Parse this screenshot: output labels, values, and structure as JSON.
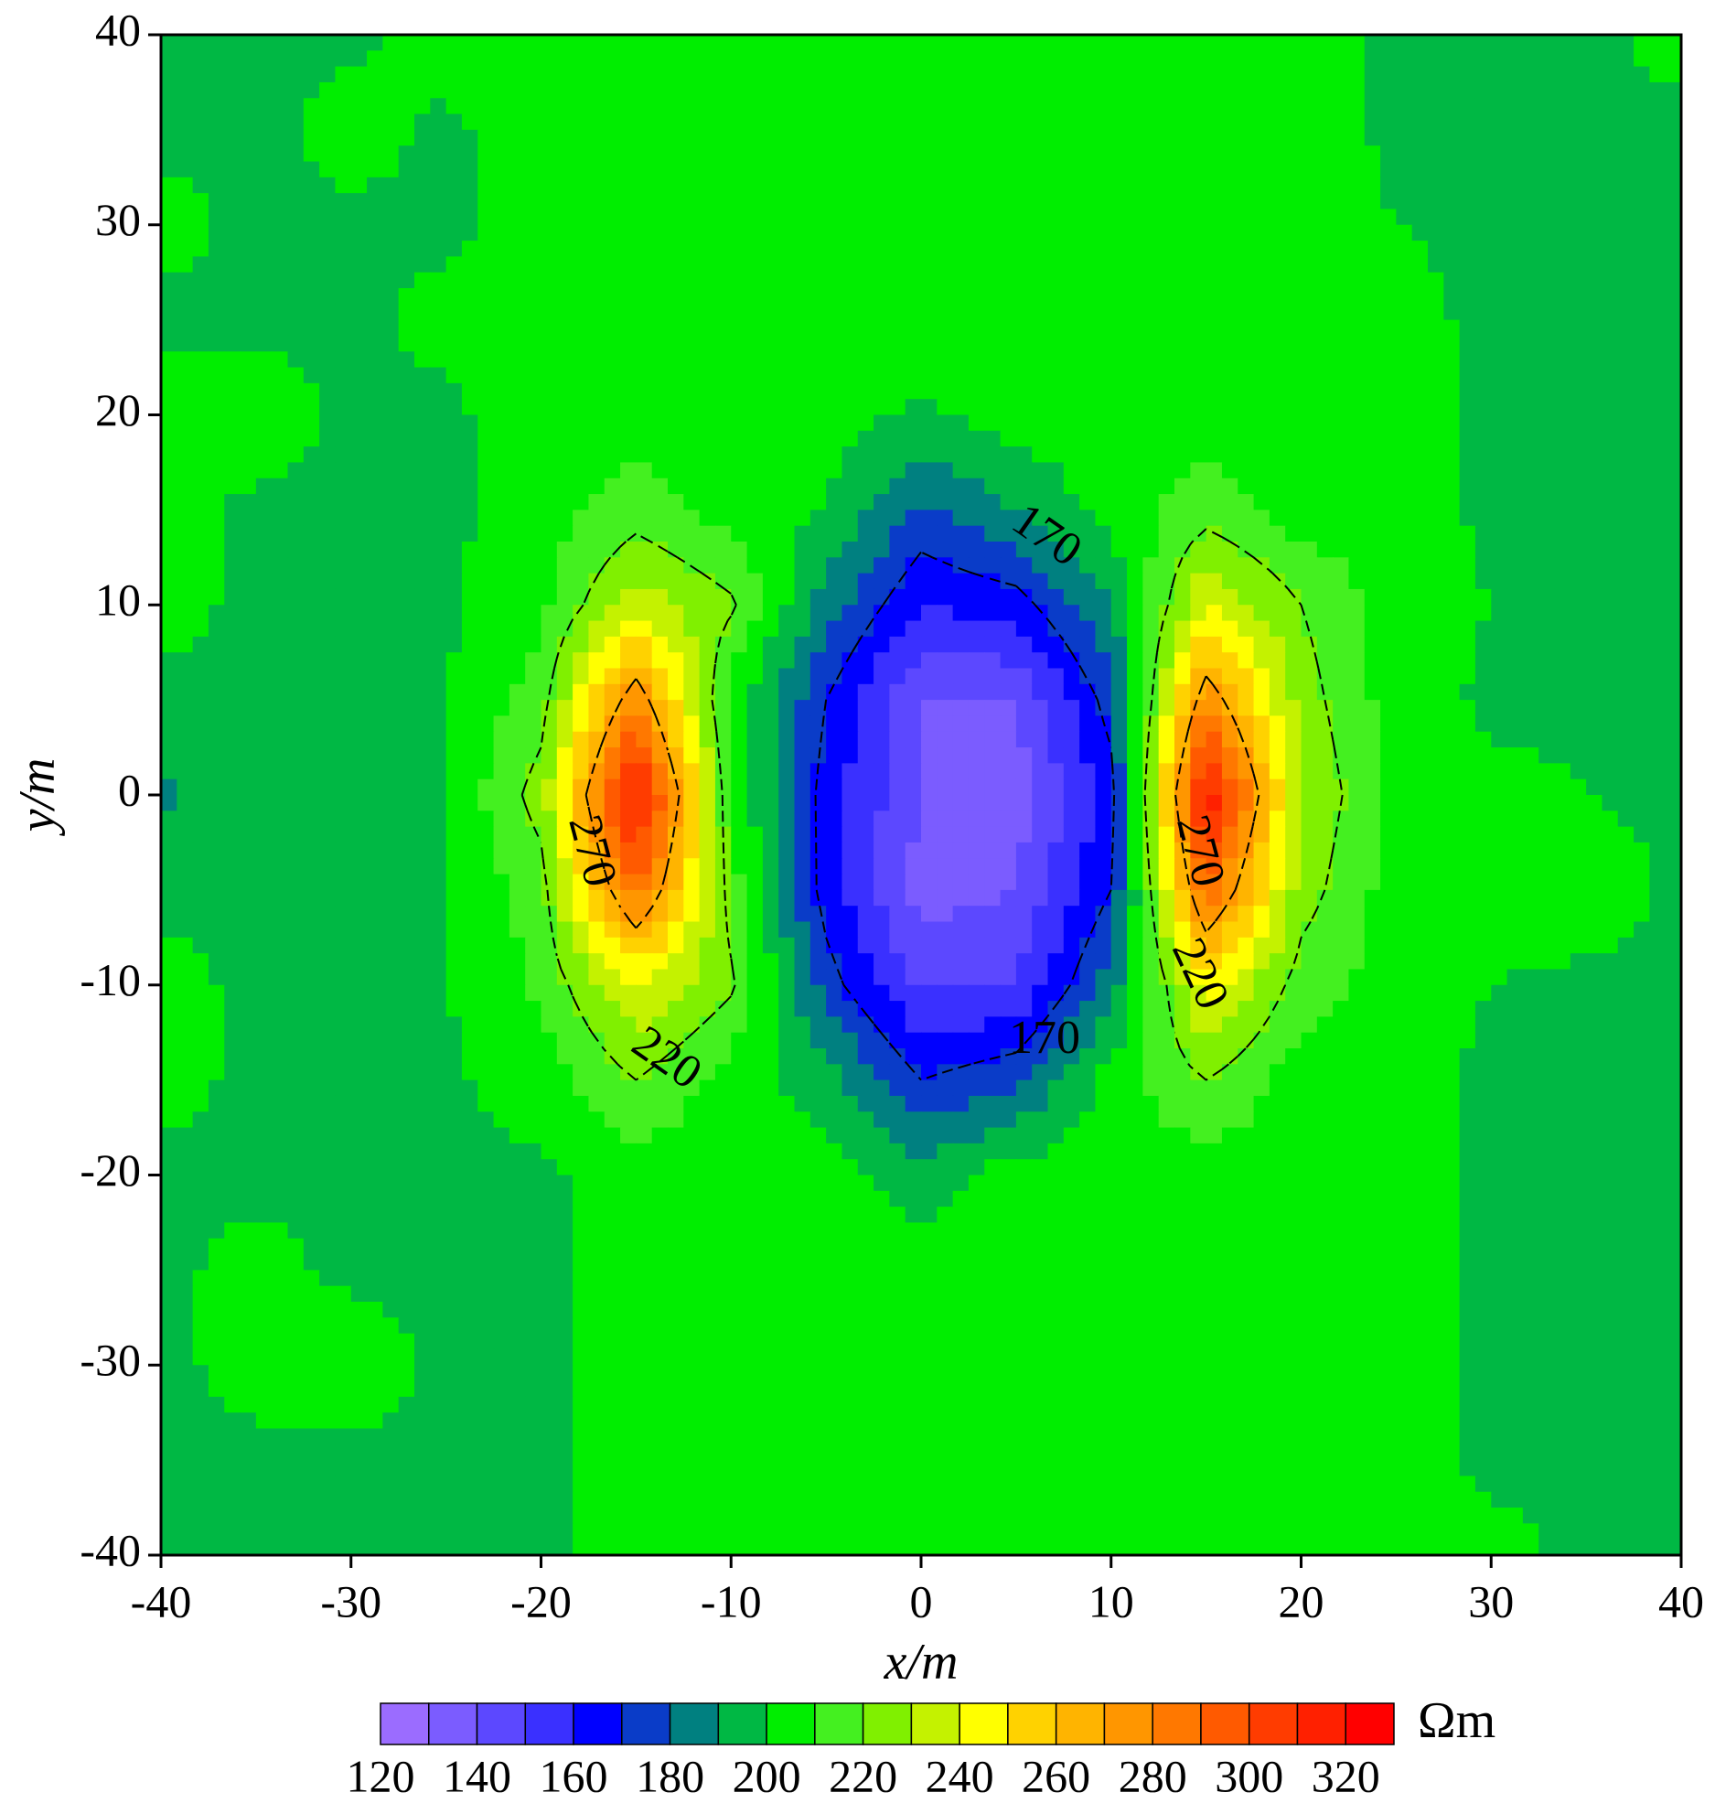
{
  "chart_data": {
    "type": "contour",
    "x_label": "x/m",
    "y_label": "y/m",
    "x": [
      -40,
      -35,
      -30,
      -25,
      -20,
      -15,
      -10,
      -5,
      0,
      5,
      10,
      15,
      20,
      25,
      30,
      35,
      40
    ],
    "y": [
      40,
      35,
      30,
      25,
      20,
      15,
      10,
      5,
      0,
      -5,
      -10,
      -15,
      -20,
      -25,
      -30,
      -35,
      -40
    ],
    "z": [
      [
        198,
        198,
        198,
        205,
        205,
        205,
        205,
        205,
        205,
        205,
        205,
        205,
        205,
        198,
        198,
        198,
        203
      ],
      [
        198,
        197,
        204,
        198,
        205,
        205,
        205,
        205,
        205,
        205,
        205,
        205,
        205,
        198,
        198,
        198,
        198
      ],
      [
        203,
        198,
        198,
        198,
        204,
        205,
        205,
        205,
        205,
        205,
        205,
        205,
        205,
        200,
        198,
        198,
        198
      ],
      [
        198,
        198,
        198,
        203,
        205,
        205,
        205,
        205,
        205,
        205,
        205,
        205,
        205,
        203,
        198,
        198,
        198
      ],
      [
        203,
        205,
        198,
        198,
        205,
        205,
        205,
        205,
        198,
        205,
        205,
        205,
        205,
        205,
        198,
        198,
        198
      ],
      [
        203,
        198,
        198,
        198,
        205,
        215,
        205,
        200,
        178,
        190,
        205,
        215,
        205,
        205,
        198,
        198,
        198
      ],
      [
        203,
        198,
        198,
        198,
        208,
        235,
        222,
        185,
        160,
        165,
        190,
        240,
        220,
        205,
        200,
        198,
        198
      ],
      [
        198,
        198,
        198,
        200,
        215,
        280,
        205,
        170,
        140,
        140,
        175,
        280,
        225,
        205,
        198,
        198,
        198
      ],
      [
        188,
        198,
        198,
        200,
        225,
        320,
        210,
        165,
        140,
        135,
        165,
        320,
        230,
        207,
        203,
        200,
        198
      ],
      [
        198,
        198,
        198,
        200,
        215,
        290,
        215,
        165,
        135,
        140,
        170,
        290,
        225,
        205,
        203,
        205,
        198
      ],
      [
        203,
        198,
        198,
        200,
        212,
        240,
        222,
        175,
        148,
        150,
        185,
        245,
        215,
        205,
        200,
        198,
        198
      ],
      [
        203,
        198,
        198,
        198,
        205,
        220,
        205,
        195,
        170,
        178,
        205,
        220,
        205,
        203,
        198,
        198,
        198
      ],
      [
        198,
        198,
        198,
        198,
        198,
        205,
        205,
        205,
        195,
        205,
        205,
        205,
        205,
        205,
        198,
        198,
        198
      ],
      [
        198,
        203,
        198,
        198,
        198,
        205,
        205,
        205,
        205,
        205,
        205,
        205,
        205,
        205,
        198,
        198,
        198
      ],
      [
        198,
        203,
        205,
        198,
        198,
        205,
        205,
        205,
        205,
        205,
        205,
        205,
        205,
        205,
        198,
        198,
        198
      ],
      [
        198,
        198,
        198,
        198,
        198,
        205,
        205,
        205,
        205,
        205,
        205,
        205,
        205,
        203,
        198,
        198,
        198
      ],
      [
        198,
        198,
        198,
        198,
        198,
        205,
        205,
        205,
        205,
        205,
        205,
        205,
        205,
        205,
        203,
        198,
        198
      ]
    ],
    "xlim": [
      -40,
      40
    ],
    "ylim": [
      -40,
      40
    ],
    "xticks": [
      -40,
      -30,
      -20,
      -10,
      0,
      10,
      20,
      30,
      40
    ],
    "yticks": [
      -40,
      -30,
      -20,
      -10,
      0,
      10,
      20,
      30,
      40
    ],
    "colorbar": {
      "unit": "Ωm",
      "levels": [
        120,
        130,
        140,
        150,
        160,
        170,
        180,
        190,
        200,
        210,
        220,
        230,
        240,
        250,
        260,
        270,
        280,
        290,
        300,
        310,
        320,
        330
      ],
      "colors": [
        "#9b6cff",
        "#7b5cff",
        "#5c48ff",
        "#3a30ff",
        "#0000ff",
        "#0a3cc8",
        "#008080",
        "#00b844",
        "#00ee00",
        "#44f020",
        "#80f000",
        "#c4f200",
        "#ffff00",
        "#ffd200",
        "#ffb400",
        "#ff9600",
        "#ff7800",
        "#ff5a00",
        "#ff3c00",
        "#ff2000",
        "#ff0000"
      ],
      "ticks": [
        120,
        140,
        160,
        180,
        200,
        220,
        240,
        260,
        280,
        300,
        320
      ]
    },
    "contour_lines": {
      "levels": [
        170,
        220,
        270
      ],
      "style": "dashed",
      "color": "#000000"
    }
  }
}
